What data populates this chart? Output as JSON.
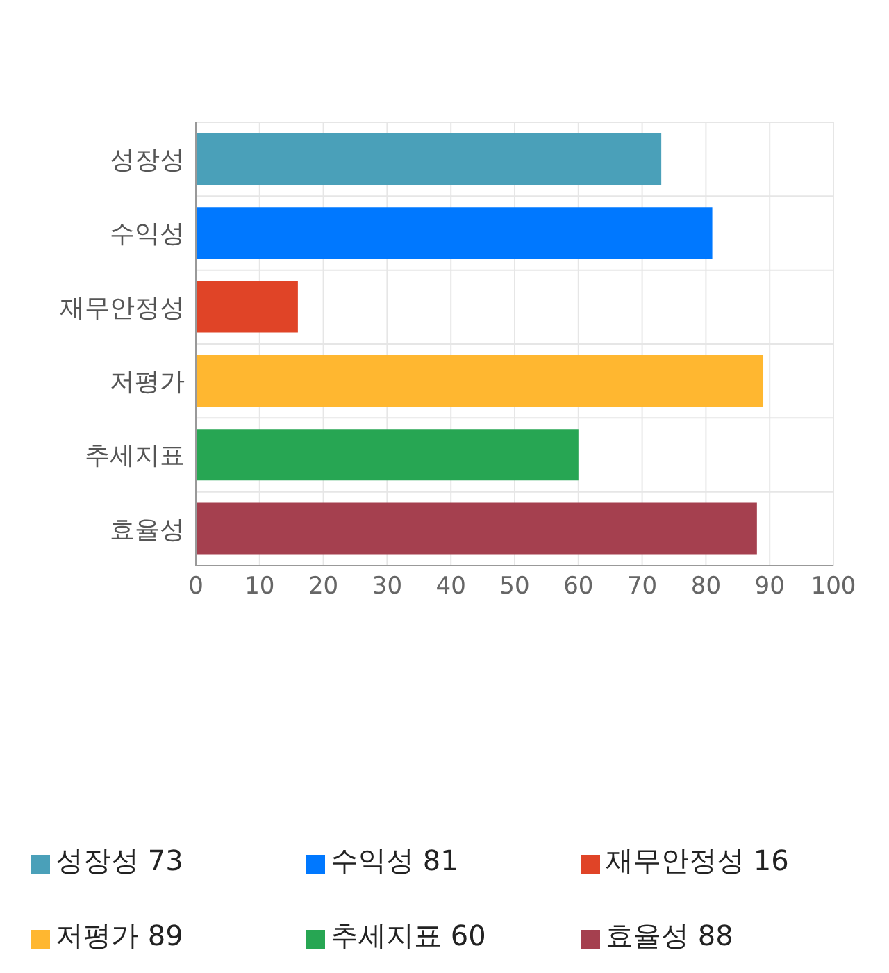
{
  "chart_data": {
    "type": "bar",
    "orientation": "horizontal",
    "stacked": true,
    "categories": [
      "성장성",
      "수익성",
      "재무안정성",
      "저평가",
      "추세지표",
      "효율성"
    ],
    "series": [
      {
        "name": "성장성 73",
        "color": "#4aa0b9",
        "values": [
          73,
          null,
          null,
          null,
          null,
          null
        ]
      },
      {
        "name": "수익성 81",
        "color": "#0078ff",
        "values": [
          null,
          81,
          null,
          null,
          null,
          null
        ]
      },
      {
        "name": "재무안정성 16",
        "color": "#e04427",
        "values": [
          null,
          null,
          16,
          null,
          null,
          null
        ]
      },
      {
        "name": "저평가 89",
        "color": "#ffb730",
        "values": [
          null,
          null,
          null,
          89,
          null,
          null
        ]
      },
      {
        "name": "추세지표 60",
        "color": "#27a653",
        "values": [
          null,
          null,
          null,
          null,
          60,
          null
        ]
      },
      {
        "name": "효율성 88",
        "color": "#a5404f",
        "values": [
          null,
          null,
          null,
          null,
          null,
          88
        ]
      }
    ],
    "xlim": [
      0,
      100
    ],
    "xticks": [
      0,
      10,
      20,
      30,
      40,
      50,
      60,
      70,
      80,
      90,
      100
    ],
    "grid": true,
    "legend": "bottom"
  }
}
